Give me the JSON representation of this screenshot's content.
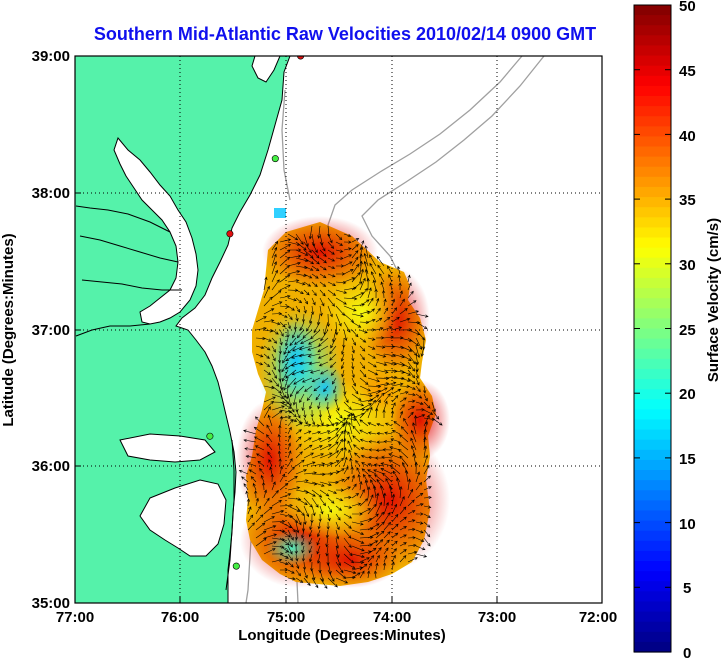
{
  "map": {
    "title": "Southern Mid-Atlantic Raw Velocities 2010/02/14 0900 GMT",
    "xlabel": "Longitude (Degrees:Minutes)",
    "ylabel": "Latitude (Degrees:Minutes)",
    "lon_ticks": [
      "77:00",
      "76:00",
      "75:00",
      "74:00",
      "73:00",
      "72:00"
    ],
    "lat_ticks": [
      "39:00",
      "38:00",
      "37:00",
      "36:00",
      "35:00"
    ],
    "lon_range": [
      -77,
      -72
    ],
    "lat_range": [
      35,
      39
    ],
    "grid": "dotted",
    "colors": {
      "land": "#55f2aa",
      "ocean": "#ffffff",
      "coastline": "#000000",
      "bathymetry": "#a0a0a0",
      "title": "#1010ee"
    }
  },
  "colorbar": {
    "label": "Surface Velocity (cm/s)",
    "ticks": [
      "50",
      "45",
      "40",
      "35",
      "30",
      "25",
      "20",
      "15",
      "10",
      "5",
      "0"
    ],
    "min": 0,
    "max": 50,
    "colormap": "jet"
  },
  "stations": [
    {
      "color": "#e01010",
      "lon": -74.86,
      "lat": 39.0
    },
    {
      "color": "#44ee44",
      "lon": -75.1,
      "lat": 38.25
    },
    {
      "color": "#e01010",
      "lon": -75.53,
      "lat": 37.7
    },
    {
      "color": "#44ee44",
      "lon": -75.72,
      "lat": 36.22
    },
    {
      "color": "#44ee44",
      "lon": -75.47,
      "lat": 35.27
    }
  ]
}
